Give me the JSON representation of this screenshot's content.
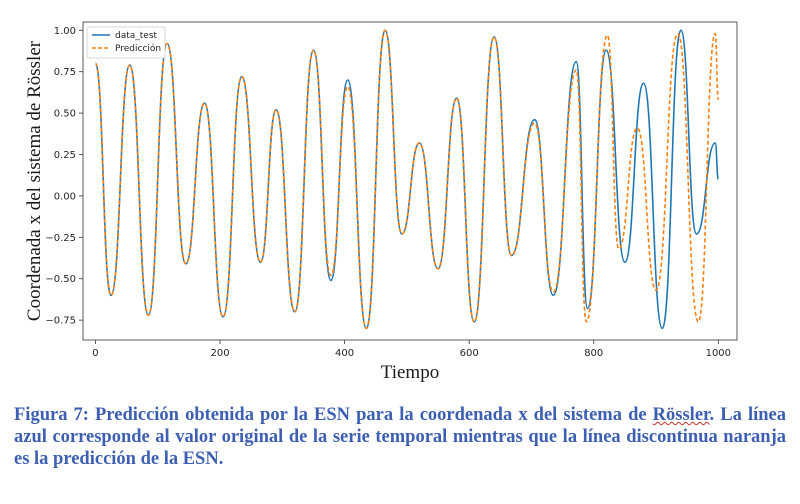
{
  "chart_data": {
    "type": "line",
    "xlabel": "Tiempo",
    "ylabel": "Coordenada x del sistema de Rössler",
    "xlim": [
      -20,
      1030
    ],
    "ylim": [
      -0.87,
      1.05
    ],
    "xticks": [
      0,
      200,
      400,
      600,
      800,
      1000
    ],
    "yticks": [
      -0.75,
      -0.5,
      -0.25,
      0.0,
      0.25,
      0.5,
      0.75,
      1.0
    ],
    "xtick_labels": [
      "0",
      "200",
      "400",
      "600",
      "800",
      "1000"
    ],
    "ytick_labels": [
      "−0.75",
      "−0.50",
      "−0.25",
      "0.00",
      "0.25",
      "0.50",
      "0.75",
      "1.00"
    ],
    "legend_position": "top-left",
    "series": [
      {
        "name": "data_test",
        "color": "#1f77b4",
        "style": "solid",
        "x": [
          0,
          25,
          55,
          85,
          115,
          145,
          175,
          205,
          235,
          265,
          290,
          320,
          350,
          378,
          405,
          435,
          465,
          492,
          520,
          550,
          580,
          608,
          640,
          668,
          705,
          735,
          772,
          790,
          820,
          850,
          880,
          910,
          940,
          965,
          995,
          1000
        ],
        "y": [
          0.8,
          -0.6,
          0.79,
          -0.72,
          0.92,
          -0.41,
          0.56,
          -0.73,
          0.72,
          -0.4,
          0.52,
          -0.7,
          0.88,
          -0.51,
          0.7,
          -0.8,
          1.0,
          -0.23,
          0.32,
          -0.44,
          0.59,
          -0.76,
          0.96,
          -0.36,
          0.46,
          -0.6,
          0.81,
          -0.68,
          0.88,
          -0.4,
          0.68,
          -0.8,
          1.0,
          -0.23,
          0.32,
          0.1
        ]
      },
      {
        "name": "Predicción",
        "color": "#ff7f0e",
        "style": "dashed",
        "x": [
          0,
          25,
          55,
          85,
          115,
          145,
          175,
          205,
          235,
          265,
          290,
          320,
          350,
          378,
          405,
          435,
          465,
          492,
          520,
          550,
          580,
          608,
          640,
          668,
          705,
          735,
          772,
          788,
          822,
          840,
          870,
          900,
          935,
          968,
          995,
          1000
        ],
        "y": [
          0.8,
          -0.6,
          0.79,
          -0.72,
          0.92,
          -0.41,
          0.56,
          -0.73,
          0.72,
          -0.4,
          0.52,
          -0.7,
          0.88,
          -0.48,
          0.66,
          -0.8,
          1.0,
          -0.23,
          0.32,
          -0.44,
          0.59,
          -0.76,
          0.96,
          -0.36,
          0.44,
          -0.58,
          0.76,
          -0.76,
          0.97,
          -0.32,
          0.41,
          -0.57,
          0.98,
          -0.76,
          0.98,
          0.58
        ]
      }
    ]
  },
  "caption": {
    "label": "Figura 7:",
    "text_before_underline": " Predicción obtenida por la ESN para la coordenada x del sistema de ",
    "underlined": "Rössler",
    "text_after_underline": ". La línea azul corresponde al valor original de la serie temporal mientras que la línea discontinua naranja es la predicción de la ESN."
  }
}
